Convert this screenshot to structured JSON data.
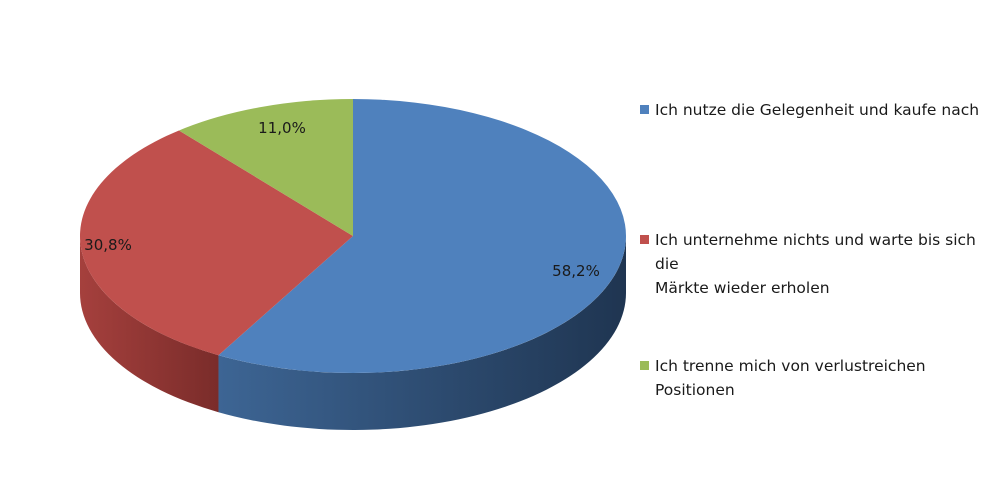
{
  "chart_data": {
    "type": "pie",
    "title": "",
    "series": [
      {
        "values": [
          58.2,
          30.8,
          11.0
        ],
        "data_labels": [
          "58,2%",
          "30,8%",
          "11,0%"
        ]
      }
    ],
    "categories": [
      "Ich nutze die Gelegenheit und kaufe nach",
      "Ich unternehme nichts und warte bis sich die Märkte wieder erholen",
      "Ich trenne mich von verlustreichen Positionen"
    ],
    "colors": [
      "#4f81bd",
      "#c0504d",
      "#9bbb59"
    ],
    "side_colors": [
      "#2c4a6e",
      "#8e3533",
      "#6c8a3a"
    ],
    "legend_position": "right",
    "style": "3d"
  },
  "legend": {
    "items": [
      {
        "lines": [
          "Ich nutze die Gelegenheit und kaufe nach"
        ],
        "color": "#4f81bd"
      },
      {
        "lines": [
          "Ich unternehme nichts und warte bis sich die",
          "Märkte wieder erholen"
        ],
        "color": "#c0504d"
      },
      {
        "lines": [
          "Ich trenne mich von verlustreichen",
          "Positionen"
        ],
        "color": "#9bbb59"
      }
    ]
  }
}
